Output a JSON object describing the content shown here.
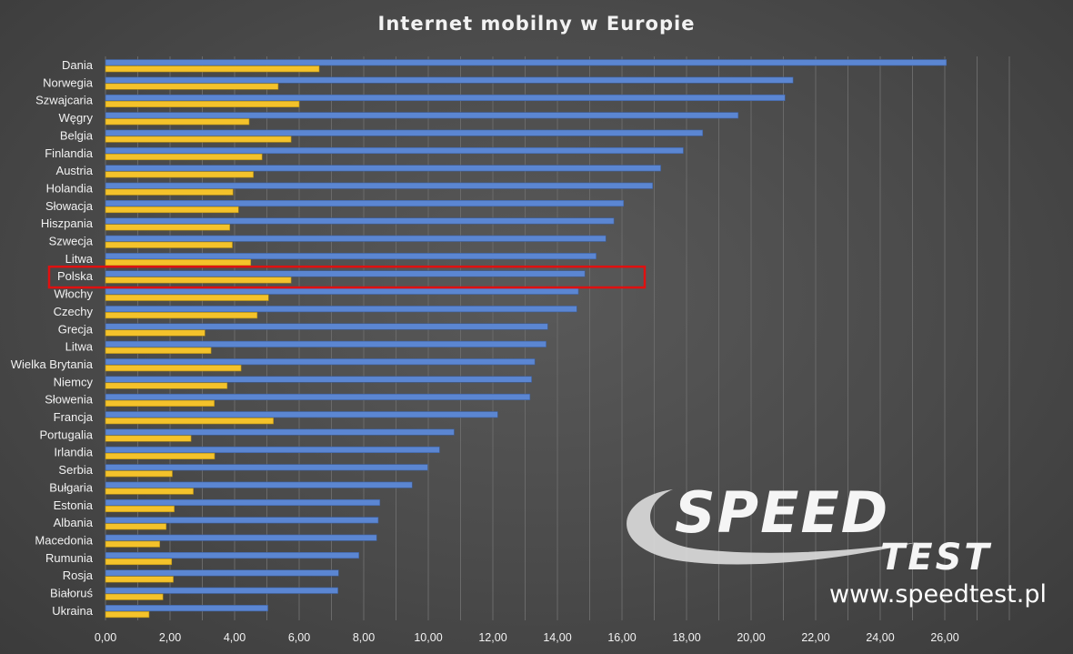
{
  "chart_data": {
    "type": "bar",
    "orientation": "horizontal",
    "title": "Internet mobilny w Europie",
    "categories": [
      "Dania",
      "Norwegia",
      "Szwajcaria",
      "Węgry",
      "Belgia",
      "Finlandia",
      "Austria",
      "Holandia",
      "Słowacja",
      "Hiszpania",
      "Szwecja",
      "Litwa",
      "Polska",
      "Włochy",
      "Czechy",
      "Grecja",
      "Litwa",
      "Wielka Brytania",
      "Niemcy",
      "Słowenia",
      "Francja",
      "Portugalia",
      "Irlandia",
      "Serbia",
      "Bułgaria",
      "Estonia",
      "Albania",
      "Macedonia",
      "Rumunia",
      "Rosja",
      "Białoruś",
      "Ukraina"
    ],
    "series": [
      {
        "color": "#5b86d2",
        "values": [
          26.05,
          21.3,
          21.05,
          19.6,
          18.5,
          17.9,
          17.2,
          16.95,
          16.05,
          15.75,
          15.5,
          15.2,
          14.85,
          14.65,
          14.6,
          13.7,
          13.65,
          13.3,
          13.2,
          13.15,
          12.15,
          10.8,
          10.35,
          9.98,
          9.5,
          8.5,
          8.45,
          8.4,
          7.85,
          7.22,
          7.2,
          5.03
        ]
      },
      {
        "color": "#f4c22b",
        "values": [
          6.62,
          5.35,
          6.0,
          4.45,
          5.75,
          4.85,
          4.58,
          3.95,
          4.12,
          3.85,
          3.93,
          4.5,
          5.75,
          5.05,
          4.7,
          3.08,
          3.27,
          4.2,
          3.77,
          3.37,
          5.2,
          2.65,
          3.38,
          2.07,
          2.72,
          2.13,
          1.88,
          1.68,
          2.05,
          2.1,
          1.78,
          1.35
        ]
      }
    ],
    "xlim": [
      0,
      28
    ],
    "xticks": [
      "0,00",
      "2,00",
      "4,00",
      "6,00",
      "8,00",
      "10,00",
      "12,00",
      "14,00",
      "16,00",
      "18,00",
      "20,00",
      "22,00",
      "24,00",
      "26,00"
    ],
    "grid": true,
    "highlight_category": "Polska",
    "highlight_color": "#e01010"
  },
  "watermark": {
    "logo_word_1": "SPEED",
    "logo_word_2": "TEST",
    "url": "www.speedtest.pl"
  }
}
